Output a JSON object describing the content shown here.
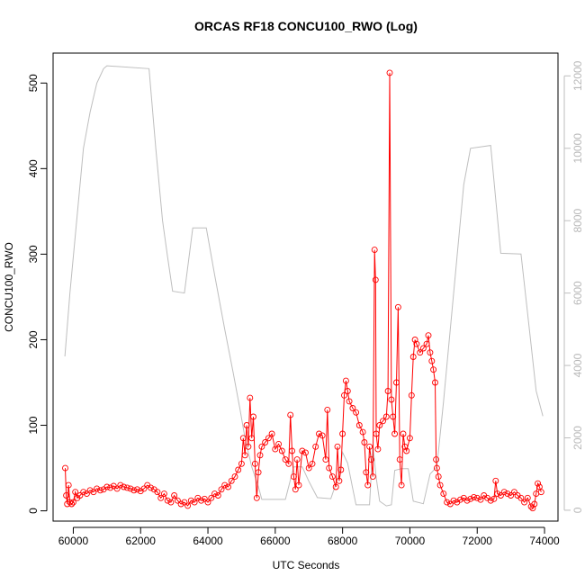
{
  "chart_data": {
    "type": "line",
    "title": "ORCAS RF18 CONCU100_RWO (Log)",
    "xlabel": "UTC Seconds",
    "ylabel": "CONCU100_RWO",
    "xlim": [
      59400,
      74400
    ],
    "ylim": [
      -12,
      535
    ],
    "y2lim": [
      -300,
      12630
    ],
    "x_ticks": [
      60000,
      62000,
      64000,
      66000,
      68000,
      70000,
      72000,
      74000
    ],
    "y_ticks": [
      0,
      100,
      200,
      300,
      400,
      500
    ],
    "y2_ticks": [
      0,
      2000,
      4000,
      6000,
      8000,
      10000,
      12000
    ],
    "colors": {
      "concentration": "#ff0000",
      "altitude": "#bebebe",
      "frame": "#000000"
    },
    "series": [
      {
        "role": "concentration",
        "axis": "left",
        "style": "line+open-circle",
        "points": [
          [
            59760,
            50
          ],
          [
            59790,
            18
          ],
          [
            59820,
            8
          ],
          [
            59860,
            30
          ],
          [
            59900,
            10
          ],
          [
            59950,
            8
          ],
          [
            60000,
            10
          ],
          [
            60060,
            22
          ],
          [
            60120,
            15
          ],
          [
            60200,
            18
          ],
          [
            60300,
            22
          ],
          [
            60400,
            20
          ],
          [
            60500,
            24
          ],
          [
            60600,
            22
          ],
          [
            60700,
            26
          ],
          [
            60800,
            24
          ],
          [
            60900,
            25
          ],
          [
            61000,
            28
          ],
          [
            61100,
            27
          ],
          [
            61200,
            29
          ],
          [
            61300,
            26
          ],
          [
            61400,
            30
          ],
          [
            61500,
            28
          ],
          [
            61600,
            27
          ],
          [
            61700,
            26
          ],
          [
            61800,
            24
          ],
          [
            61900,
            25
          ],
          [
            62000,
            23
          ],
          [
            62100,
            26
          ],
          [
            62200,
            30
          ],
          [
            62300,
            27
          ],
          [
            62400,
            25
          ],
          [
            62500,
            22
          ],
          [
            62600,
            15
          ],
          [
            62700,
            20
          ],
          [
            62800,
            12
          ],
          [
            62900,
            10
          ],
          [
            63000,
            18
          ],
          [
            63100,
            12
          ],
          [
            63200,
            8
          ],
          [
            63300,
            10
          ],
          [
            63400,
            6
          ],
          [
            63500,
            12
          ],
          [
            63600,
            10
          ],
          [
            63700,
            15
          ],
          [
            63800,
            12
          ],
          [
            63900,
            14
          ],
          [
            64000,
            10
          ],
          [
            64100,
            15
          ],
          [
            64200,
            20
          ],
          [
            64300,
            18
          ],
          [
            64400,
            25
          ],
          [
            64500,
            30
          ],
          [
            64600,
            28
          ],
          [
            64700,
            35
          ],
          [
            64800,
            40
          ],
          [
            64900,
            48
          ],
          [
            65000,
            55
          ],
          [
            65050,
            85
          ],
          [
            65100,
            65
          ],
          [
            65150,
            100
          ],
          [
            65200,
            75
          ],
          [
            65250,
            132
          ],
          [
            65300,
            85
          ],
          [
            65350,
            110
          ],
          [
            65400,
            55
          ],
          [
            65450,
            15
          ],
          [
            65500,
            45
          ],
          [
            65550,
            65
          ],
          [
            65600,
            75
          ],
          [
            65700,
            80
          ],
          [
            65800,
            85
          ],
          [
            65900,
            90
          ],
          [
            66000,
            72
          ],
          [
            66100,
            78
          ],
          [
            66200,
            70
          ],
          [
            66300,
            60
          ],
          [
            66400,
            55
          ],
          [
            66450,
            112
          ],
          [
            66500,
            70
          ],
          [
            66550,
            40
          ],
          [
            66600,
            25
          ],
          [
            66650,
            60
          ],
          [
            66700,
            30
          ],
          [
            66800,
            70
          ],
          [
            66900,
            68
          ],
          [
            67000,
            50
          ],
          [
            67100,
            55
          ],
          [
            67200,
            75
          ],
          [
            67300,
            90
          ],
          [
            67400,
            88
          ],
          [
            67500,
            60
          ],
          [
            67550,
            118
          ],
          [
            67600,
            50
          ],
          [
            67700,
            40
          ],
          [
            67800,
            28
          ],
          [
            67850,
            75
          ],
          [
            67900,
            35
          ],
          [
            67950,
            48
          ],
          [
            68000,
            90
          ],
          [
            68050,
            135
          ],
          [
            68100,
            152
          ],
          [
            68150,
            140
          ],
          [
            68200,
            128
          ],
          [
            68300,
            120
          ],
          [
            68400,
            115
          ],
          [
            68500,
            100
          ],
          [
            68600,
            92
          ],
          [
            68650,
            80
          ],
          [
            68700,
            45
          ],
          [
            68750,
            30
          ],
          [
            68800,
            75
          ],
          [
            68850,
            60
          ],
          [
            68900,
            40
          ],
          [
            68950,
            305
          ],
          [
            68980,
            270
          ],
          [
            69000,
            90
          ],
          [
            69050,
            72
          ],
          [
            69100,
            100
          ],
          [
            69200,
            105
          ],
          [
            69300,
            110
          ],
          [
            69350,
            140
          ],
          [
            69400,
            512
          ],
          [
            69450,
            130
          ],
          [
            69500,
            110
          ],
          [
            69550,
            90
          ],
          [
            69600,
            150
          ],
          [
            69650,
            238
          ],
          [
            69700,
            60
          ],
          [
            69750,
            30
          ],
          [
            69800,
            90
          ],
          [
            69850,
            75
          ],
          [
            69900,
            70
          ],
          [
            70000,
            85
          ],
          [
            70050,
            135
          ],
          [
            70100,
            180
          ],
          [
            70150,
            200
          ],
          [
            70200,
            195
          ],
          [
            70300,
            185
          ],
          [
            70400,
            190
          ],
          [
            70500,
            195
          ],
          [
            70550,
            205
          ],
          [
            70600,
            185
          ],
          [
            70650,
            175
          ],
          [
            70700,
            165
          ],
          [
            70750,
            150
          ],
          [
            70780,
            60
          ],
          [
            70800,
            50
          ],
          [
            70850,
            40
          ],
          [
            70900,
            30
          ],
          [
            71000,
            20
          ],
          [
            71100,
            10
          ],
          [
            71200,
            8
          ],
          [
            71300,
            12
          ],
          [
            71400,
            10
          ],
          [
            71500,
            13
          ],
          [
            71600,
            15
          ],
          [
            71700,
            12
          ],
          [
            71800,
            14
          ],
          [
            71900,
            16
          ],
          [
            72000,
            15
          ],
          [
            72100,
            13
          ],
          [
            72200,
            18
          ],
          [
            72300,
            15
          ],
          [
            72400,
            12
          ],
          [
            72500,
            14
          ],
          [
            72550,
            35
          ],
          [
            72600,
            20
          ],
          [
            72700,
            18
          ],
          [
            72800,
            22
          ],
          [
            72900,
            20
          ],
          [
            73000,
            18
          ],
          [
            73100,
            22
          ],
          [
            73200,
            18
          ],
          [
            73300,
            15
          ],
          [
            73400,
            10
          ],
          [
            73500,
            15
          ],
          [
            73600,
            5
          ],
          [
            73650,
            3
          ],
          [
            73700,
            8
          ],
          [
            73750,
            20
          ],
          [
            73800,
            32
          ],
          [
            73850,
            28
          ],
          [
            73900,
            22
          ]
        ]
      },
      {
        "role": "altitude",
        "axis": "right",
        "style": "line",
        "points": [
          [
            59750,
            4250
          ],
          [
            59900,
            6000
          ],
          [
            60100,
            8000
          ],
          [
            60300,
            10000
          ],
          [
            60500,
            11000
          ],
          [
            60700,
            11800
          ],
          [
            60900,
            12200
          ],
          [
            61000,
            12280
          ],
          [
            62250,
            12200
          ],
          [
            62450,
            10000
          ],
          [
            62650,
            8000
          ],
          [
            62800,
            7000
          ],
          [
            62950,
            6050
          ],
          [
            63300,
            6000
          ],
          [
            63550,
            7800
          ],
          [
            63950,
            7800
          ],
          [
            64200,
            6500
          ],
          [
            64500,
            5000
          ],
          [
            64750,
            3800
          ],
          [
            64950,
            2800
          ],
          [
            65100,
            2000
          ],
          [
            65300,
            1200
          ],
          [
            65500,
            650
          ],
          [
            65600,
            300
          ],
          [
            66300,
            300
          ],
          [
            66550,
            1200
          ],
          [
            66800,
            1200
          ],
          [
            67000,
            800
          ],
          [
            67250,
            350
          ],
          [
            67650,
            320
          ],
          [
            67900,
            1000
          ],
          [
            68000,
            1600
          ],
          [
            68150,
            1300
          ],
          [
            68300,
            600
          ],
          [
            68400,
            150
          ],
          [
            68800,
            150
          ],
          [
            68900,
            1800
          ],
          [
            69000,
            900
          ],
          [
            69100,
            250
          ],
          [
            69300,
            120
          ],
          [
            69450,
            150
          ],
          [
            69550,
            1100
          ],
          [
            69750,
            1150
          ],
          [
            69950,
            1150
          ],
          [
            70100,
            250
          ],
          [
            70400,
            180
          ],
          [
            70600,
            1000
          ],
          [
            70800,
            1200
          ],
          [
            71000,
            3000
          ],
          [
            71200,
            5000
          ],
          [
            71400,
            7000
          ],
          [
            71600,
            9000
          ],
          [
            71800,
            10000
          ],
          [
            72400,
            10080
          ],
          [
            72700,
            7100
          ],
          [
            73300,
            7080
          ],
          [
            73550,
            5000
          ],
          [
            73750,
            3300
          ],
          [
            73950,
            2600
          ]
        ]
      }
    ]
  }
}
